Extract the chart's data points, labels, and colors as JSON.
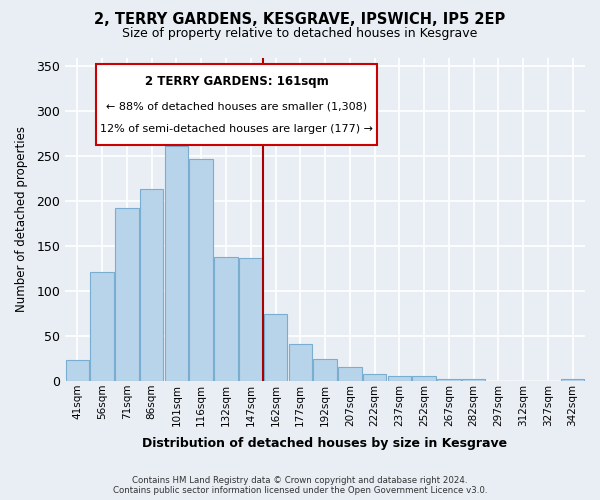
{
  "title": "2, TERRY GARDENS, KESGRAVE, IPSWICH, IP5 2EP",
  "subtitle": "Size of property relative to detached houses in Kesgrave",
  "xlabel": "Distribution of detached houses by size in Kesgrave",
  "ylabel": "Number of detached properties",
  "categories": [
    "41sqm",
    "56sqm",
    "71sqm",
    "86sqm",
    "101sqm",
    "116sqm",
    "132sqm",
    "147sqm",
    "162sqm",
    "177sqm",
    "192sqm",
    "207sqm",
    "222sqm",
    "237sqm",
    "252sqm",
    "267sqm",
    "282sqm",
    "297sqm",
    "312sqm",
    "327sqm",
    "342sqm"
  ],
  "values": [
    23,
    121,
    192,
    214,
    261,
    247,
    138,
    137,
    75,
    41,
    25,
    16,
    8,
    5,
    5,
    2,
    2,
    0,
    0,
    0,
    2
  ],
  "bar_color": "#b8d4ea",
  "bar_edge_color": "#7aaed0",
  "vline_color": "#aa0000",
  "annotation_title": "2 TERRY GARDENS: 161sqm",
  "annotation_line1": "← 88% of detached houses are smaller (1,308)",
  "annotation_line2": "12% of semi-detached houses are larger (177) →",
  "annotation_box_color": "#ffffff",
  "annotation_box_edge": "#cc0000",
  "ylim": [
    0,
    360
  ],
  "yticks": [
    0,
    50,
    100,
    150,
    200,
    250,
    300,
    350
  ],
  "footer_line1": "Contains HM Land Registry data © Crown copyright and database right 2024.",
  "footer_line2": "Contains public sector information licensed under the Open Government Licence v3.0.",
  "background_color": "#e8eef4"
}
